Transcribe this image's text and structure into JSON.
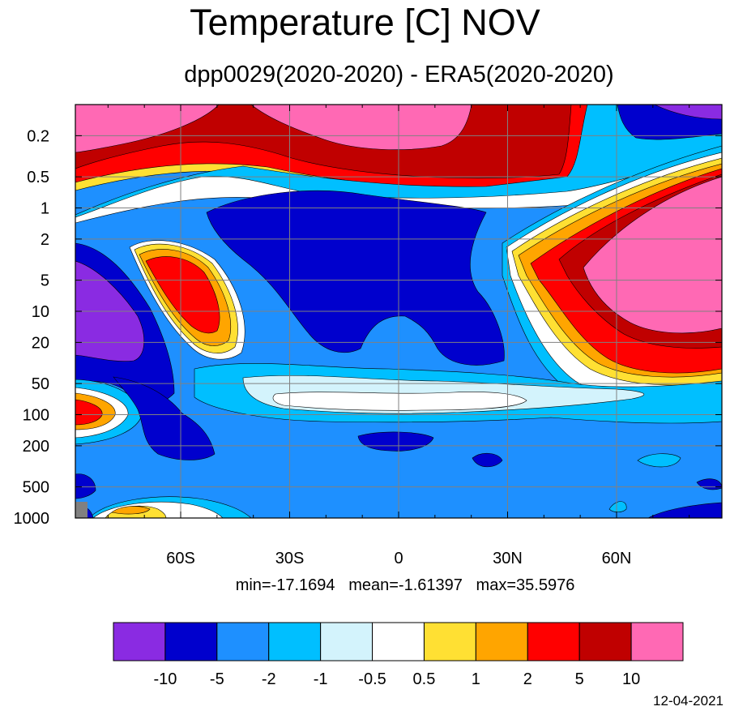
{
  "chart_data": {
    "type": "contour",
    "title": "Temperature [C] NOV",
    "subtitle": "dpp0029(2020-2020) - ERA5(2020-2020)",
    "x_ticks": [
      "60S",
      "30S",
      "0",
      "30N",
      "60N"
    ],
    "x_tick_values": [
      -60,
      -30,
      0,
      30,
      60
    ],
    "xlim": [
      -89,
      89
    ],
    "y_scale": "log",
    "y_ticks": [
      "0.2",
      "0.5",
      "1",
      "2",
      "5",
      "10",
      "20",
      "50",
      "100",
      "200",
      "500",
      "1000"
    ],
    "y_tick_values": [
      0.2,
      0.5,
      1,
      2,
      5,
      10,
      20,
      50,
      100,
      200,
      500,
      1000
    ],
    "ylim": [
      0.1,
      1000
    ],
    "grid": true,
    "stats": "min=-17.1694   mean=-1.61397   max=35.5976",
    "colorbar": {
      "levels": [
        "-10",
        "-5",
        "-2",
        "-1",
        "-0.5",
        "0.5",
        "1",
        "2",
        "5",
        "10"
      ],
      "colors": [
        "#8a2be2",
        "#0000cd",
        "#1e90ff",
        "#00bfff",
        "#d3f3fc",
        "#ffffff",
        "#ffe033",
        "#ffa500",
        "#ff0000",
        "#c00000",
        "#ff69b4"
      ]
    },
    "date": "12-04-2021"
  }
}
